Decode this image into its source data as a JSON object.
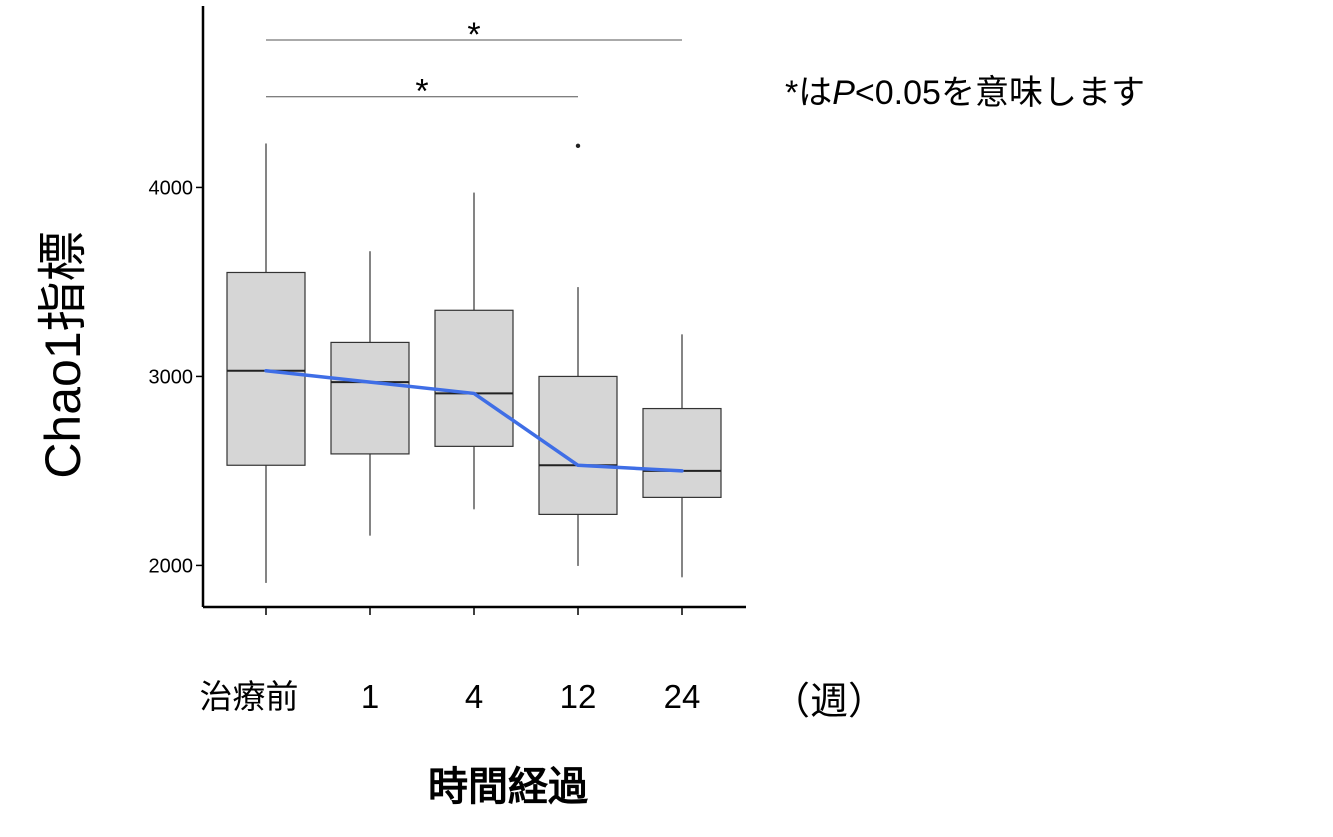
{
  "chart_data": {
    "type": "box",
    "ylabel": "Chao1指標",
    "xlabel": "時間経過",
    "x_unit": "（週）",
    "categories": [
      "治療前",
      "1",
      "4",
      "12",
      "24"
    ],
    "ylim": [
      1780,
      4960
    ],
    "yticks": [
      2000,
      3000,
      4000
    ],
    "boxes": [
      {
        "category": "治療前",
        "whisker_low": 1910,
        "q1": 2530,
        "median": 3030,
        "q3": 3550,
        "whisker_high": 4230,
        "outliers": []
      },
      {
        "category": "1",
        "whisker_low": 2160,
        "q1": 2590,
        "median": 2970,
        "q3": 3180,
        "whisker_high": 3660,
        "outliers": []
      },
      {
        "category": "4",
        "whisker_low": 2300,
        "q1": 2630,
        "median": 2910,
        "q3": 3350,
        "whisker_high": 3970,
        "outliers": []
      },
      {
        "category": "12",
        "whisker_low": 2000,
        "q1": 2270,
        "median": 2530,
        "q3": 3000,
        "whisker_high": 3470,
        "outliers": [
          4220
        ]
      },
      {
        "category": "24",
        "whisker_low": 1940,
        "q1": 2360,
        "median": 2500,
        "q3": 2830,
        "whisker_high": 3220,
        "outliers": []
      }
    ],
    "trend_line": {
      "color": "#3f6ee6",
      "values": [
        3030,
        2970,
        2910,
        2530,
        2500
      ]
    },
    "box_fill": "#d6d6d6",
    "significance": [
      {
        "from": "治療前",
        "to": "24",
        "y": 4780,
        "label": "*"
      },
      {
        "from": "治療前",
        "to": "12",
        "y": 4480,
        "label": "*"
      }
    ],
    "annotation": {
      "prefix": "*は",
      "p": "P",
      "suffix": "<0.05を意味します"
    },
    "grid": false
  }
}
